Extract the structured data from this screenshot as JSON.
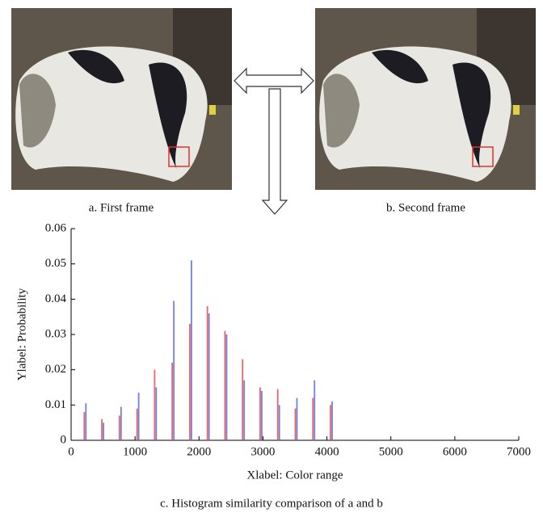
{
  "panels": [
    {
      "caption": "a. First frame"
    },
    {
      "caption": "b. Second frame"
    }
  ],
  "chart_data": {
    "type": "bar",
    "x": [
      215,
      490,
      765,
      1040,
      1315,
      1590,
      1865,
      2140,
      2415,
      2690,
      2965,
      3240,
      3515,
      3790,
      4065
    ],
    "series": [
      {
        "color": "#e8494f",
        "values": [
          0.008,
          0.006,
          0.007,
          0.009,
          0.02,
          0.022,
          0.033,
          0.038,
          0.031,
          0.023,
          0.015,
          0.0145,
          0.009,
          0.012,
          0.01
        ]
      },
      {
        "color": "#5b6ad6",
        "values": [
          0.0105,
          0.005,
          0.0095,
          0.0135,
          0.015,
          0.0395,
          0.051,
          0.036,
          0.03,
          0.017,
          0.014,
          0.01,
          0.012,
          0.017,
          0.011
        ]
      }
    ],
    "xlim": [
      0,
      7000
    ],
    "xticks": [
      0,
      1000,
      2000,
      3000,
      4000,
      5000,
      6000,
      7000
    ],
    "ylim": [
      0,
      0.06
    ],
    "yticks": [
      0,
      0.01,
      0.02,
      0.03,
      0.04,
      0.05,
      0.06
    ],
    "xlabel": "Xlabel: Color range",
    "ylabel": "Ylabel: Probability"
  },
  "caption": "c. Histogram similarity comparison of a and b"
}
